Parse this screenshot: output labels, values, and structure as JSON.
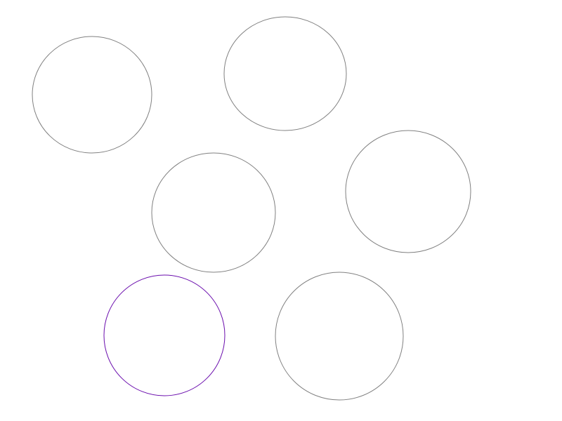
{
  "canvas": {
    "background_color": "#ffffff"
  },
  "shapes": [
    {
      "type": "circle",
      "stroke_color": "#808080",
      "selected": false
    },
    {
      "type": "circle",
      "stroke_color": "#808080",
      "selected": false
    },
    {
      "type": "circle",
      "stroke_color": "#808080",
      "selected": false
    },
    {
      "type": "circle",
      "stroke_color": "#808080",
      "selected": false
    },
    {
      "type": "circle",
      "stroke_color": "#6a0dad",
      "selected": true
    },
    {
      "type": "circle",
      "stroke_color": "#808080",
      "selected": false
    }
  ]
}
